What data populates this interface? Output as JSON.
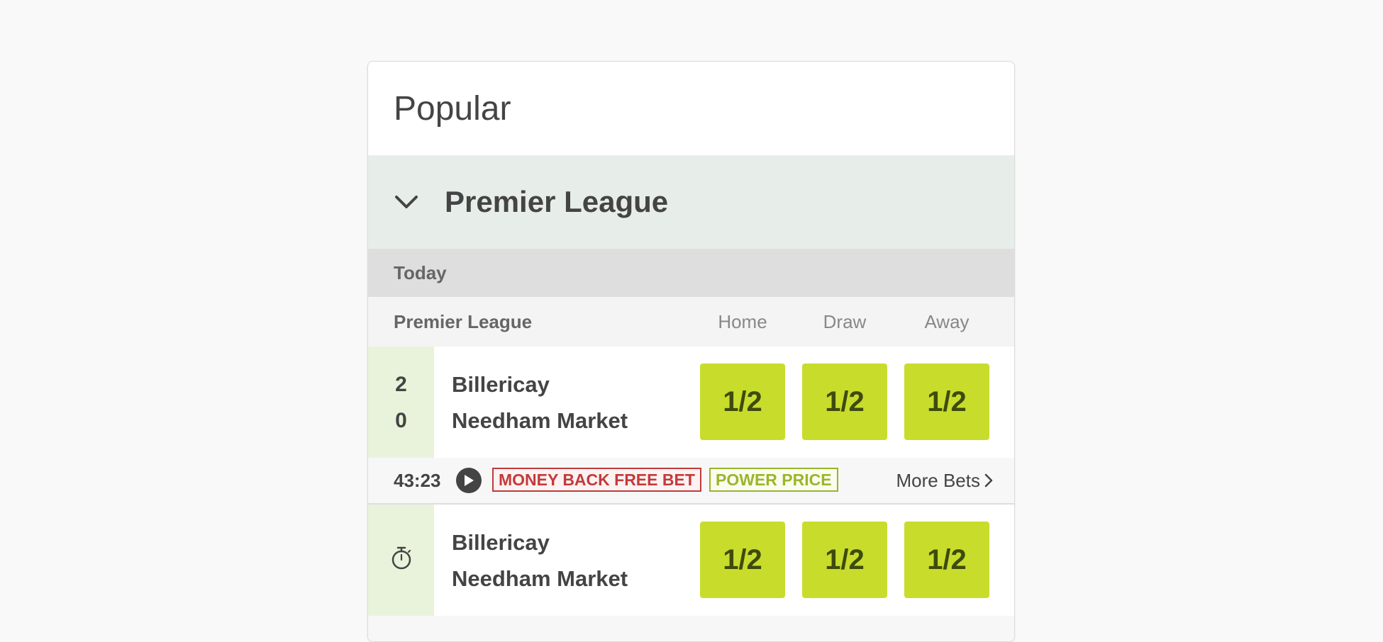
{
  "card": {
    "title": "Popular"
  },
  "league": {
    "name": "Premier League",
    "collapse_icon": "chevron-down-icon"
  },
  "date_label": "Today",
  "columns": {
    "competition": "Premier League",
    "home": "Home",
    "draw": "Draw",
    "away": "Away"
  },
  "events": [
    {
      "home_team": "Billericay",
      "away_team": "Needham Market",
      "home_score": "2",
      "away_score": "0",
      "odds": {
        "home": "1/2",
        "draw": "1/2",
        "away": "1/2"
      },
      "clock": "43:23",
      "badges": {
        "money_back": "MONEY BACK FREE BET",
        "power_price": "POWER PRICE"
      },
      "more_bets": "More Bets"
    },
    {
      "home_team": "Billericay",
      "away_team": "Needham Market",
      "status_icon": "stopwatch-icon",
      "odds": {
        "home": "1/2",
        "draw": "1/2",
        "away": "1/2"
      }
    }
  ],
  "colors": {
    "odds_button": "#c8dc2c",
    "league_header": "#e7eeea",
    "score_column": "#e9f3dc",
    "badge_red": "#c23a3a",
    "badge_green": "#9bb52a"
  }
}
